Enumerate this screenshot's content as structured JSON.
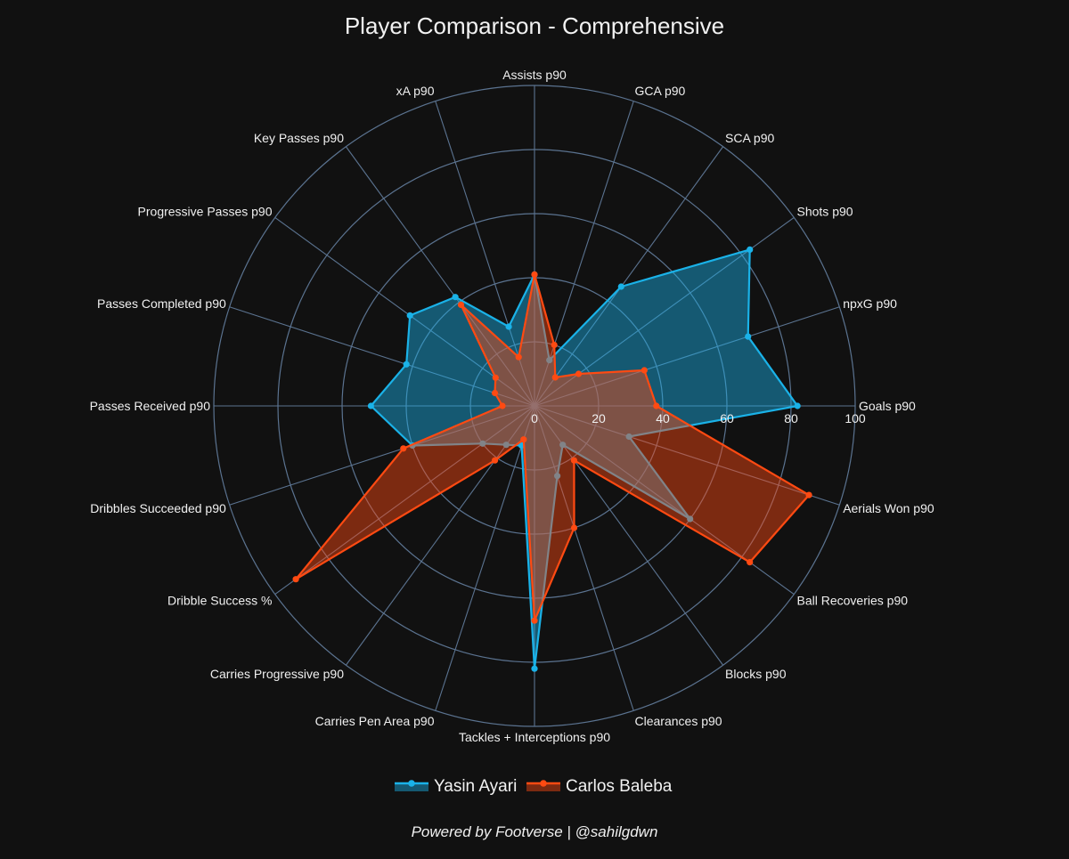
{
  "chart_data": {
    "type": "radar",
    "title": "Player Comparison - Comprehensive",
    "axes": [
      "Goals p90",
      "npxG p90",
      "Shots p90",
      "SCA p90",
      "GCA p90",
      "Assists p90",
      "xA p90",
      "Key Passes p90",
      "Progressive Passes p90",
      "Passes Completed p90",
      "Passes Received p90",
      "Dribbles Succeeded p90",
      "Dribble Success %",
      "Carries Progressive p90",
      "Carries Pen Area p90",
      "Tackles + Interceptions p90",
      "Clearances p90",
      "Blocks p90",
      "Ball Recoveries p90",
      "Aerials Won p90"
    ],
    "radial_ticks": [
      "0",
      "20",
      "40",
      "60",
      "80",
      "100"
    ],
    "r_range": [
      0,
      100
    ],
    "series": [
      {
        "name": "Yasin Ayari",
        "color": "#1ab2e8",
        "values": [
          82,
          70,
          83,
          46,
          15,
          41,
          26,
          42,
          48,
          42,
          51,
          40,
          20,
          15,
          13,
          82,
          23,
          15,
          60,
          31
        ]
      },
      {
        "name": "Carlos Baleba",
        "color": "#ff4a12",
        "values": [
          38,
          36,
          17,
          11,
          20,
          41,
          16,
          39,
          15,
          13,
          10,
          43,
          92,
          21,
          11,
          67,
          40,
          21,
          83,
          90
        ]
      }
    ],
    "legend_position": "bottom-center",
    "grid": true
  },
  "footer": {
    "text": "Powered by Footverse | @sahilgdwn"
  }
}
